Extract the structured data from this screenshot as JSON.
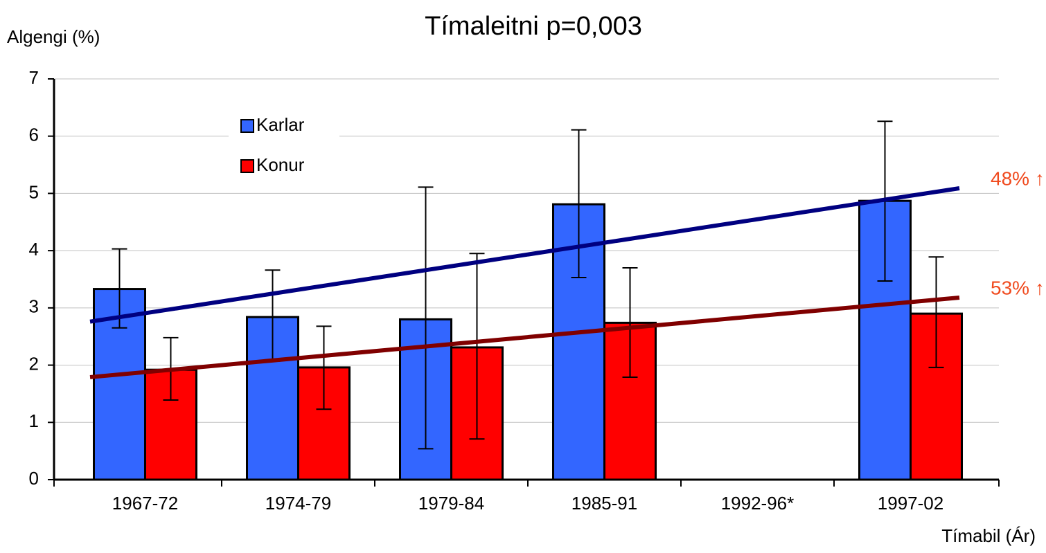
{
  "chart_data": {
    "type": "bar",
    "title": "Tímaleitni p=0,003",
    "y_label": "Algengi (%)",
    "x_label": "Tímabil (Ár)",
    "categories": [
      "1967-72",
      "1974-79",
      "1979-84",
      "1985-91",
      "1992-96*",
      "1997-02"
    ],
    "series": [
      {
        "name": "Karlar",
        "color": "#3366ff",
        "values": [
          3.33,
          2.84,
          2.8,
          4.81,
          null,
          4.87
        ],
        "lower": [
          2.65,
          2.07,
          0.54,
          3.53,
          null,
          3.47
        ],
        "upper": [
          4.03,
          3.66,
          5.11,
          6.11,
          null,
          6.26
        ],
        "trend": [
          2.76,
          5.09
        ],
        "trend_color": "#000080",
        "annotation": "48% ↑"
      },
      {
        "name": "Konur",
        "color": "#ff0000",
        "values": [
          1.92,
          1.96,
          2.31,
          2.74,
          null,
          2.9
        ],
        "lower": [
          1.39,
          1.23,
          0.71,
          1.79,
          null,
          1.96
        ],
        "upper": [
          2.48,
          2.68,
          3.95,
          3.7,
          null,
          3.89
        ],
        "trend": [
          1.79,
          3.18
        ],
        "trend_color": "#800000",
        "annotation": "53% ↑"
      }
    ],
    "annotation_color": "#f04a1e",
    "ylim": [
      0,
      7
    ],
    "yticks": [
      0,
      1,
      2,
      3,
      4,
      5,
      6,
      7
    ],
    "grid": true,
    "legend": "upper left"
  }
}
